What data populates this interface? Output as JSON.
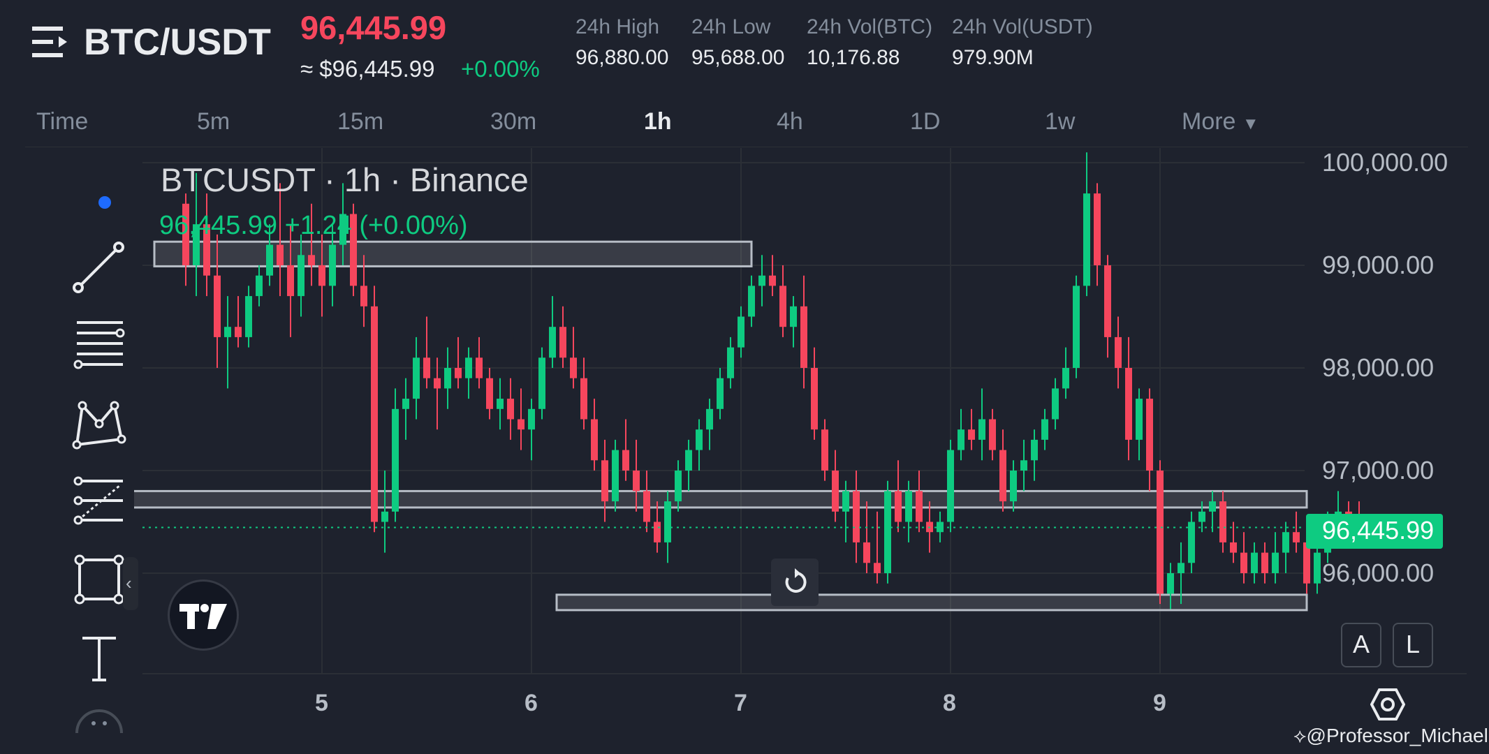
{
  "header": {
    "pair": "BTC/USDT",
    "last_price": "96,445.99",
    "fiat_price": "≈ $96,445.99",
    "change_pct": "+0.00%",
    "stats": [
      {
        "label": "24h High",
        "value": "96,880.00"
      },
      {
        "label": "24h Low",
        "value": "95,688.00"
      },
      {
        "label": "24h Vol(BTC)",
        "value": "10,176.88"
      },
      {
        "label": "24h Vol(USDT)",
        "value": "979.90M"
      }
    ]
  },
  "intervals": [
    "Time",
    "5m",
    "15m",
    "30m",
    "1h",
    "4h",
    "1D",
    "1w",
    "More"
  ],
  "active_interval": "1h",
  "toolbar": {
    "icons": [
      "dot-indicator-icon",
      "trend-line-icon",
      "horizontal-lines-icon",
      "pattern-icon",
      "fib-tool-icon",
      "rectangle-icon",
      "text-icon",
      "more-tools-icon"
    ]
  },
  "chart": {
    "title": "BTCUSDT · 1h · Binance",
    "ohlc": "96,445.99 +1.24 (+0.00%)",
    "price_tag": "96,445.99",
    "scale_auto": "A",
    "scale_log": "L",
    "watermark": "@Professor_Michael",
    "colors": {
      "up": "#0ecb81",
      "down": "#f6465d",
      "background": "#1e222d",
      "grid": "#2b2f36"
    }
  },
  "chart_data": {
    "type": "candlestick",
    "title": "BTCUSDT · 1h · Binance",
    "y_ticks": [
      "100,000.00",
      "99,000.00",
      "98,000.00",
      "97,000.00",
      "96,000.00"
    ],
    "x_ticks": [
      "5",
      "6",
      "7",
      "8",
      "9"
    ],
    "ylim": [
      95200,
      100150
    ],
    "last_price": 96445.99,
    "zones": [
      {
        "x_start": 4.2,
        "x_end": 7.05,
        "y_low": 98990,
        "y_high": 99230
      },
      {
        "x_start": 3.95,
        "x_end": 9.7,
        "y_low": 96640,
        "y_high": 96800
      },
      {
        "x_start": 6.12,
        "x_end": 9.7,
        "y_low": 95640,
        "y_high": 95790
      }
    ],
    "candles": [
      [
        4.35,
        99600,
        99700,
        98800,
        99000
      ],
      [
        4.4,
        99000,
        99900,
        98700,
        99400
      ],
      [
        4.45,
        99400,
        99700,
        98700,
        98900
      ],
      [
        4.5,
        98900,
        99300,
        98000,
        98300
      ],
      [
        4.55,
        98300,
        98700,
        97800,
        98400
      ],
      [
        4.6,
        98400,
        98700,
        98200,
        98300
      ],
      [
        4.65,
        98300,
        98800,
        98200,
        98700
      ],
      [
        4.7,
        98700,
        99000,
        98600,
        98900
      ],
      [
        4.75,
        98900,
        99400,
        98800,
        99200
      ],
      [
        4.8,
        99200,
        99800,
        98700,
        99000
      ],
      [
        4.85,
        99000,
        99400,
        98300,
        98700
      ],
      [
        4.9,
        98700,
        99300,
        98500,
        99100
      ],
      [
        4.95,
        99100,
        99600,
        98800,
        99000
      ],
      [
        5.0,
        99000,
        99300,
        98500,
        98800
      ],
      [
        5.05,
        98800,
        99400,
        98600,
        99200
      ],
      [
        5.1,
        99200,
        99800,
        99000,
        99500
      ],
      [
        5.15,
        99500,
        99600,
        98700,
        98800
      ],
      [
        5.2,
        98800,
        99100,
        98400,
        98600
      ],
      [
        5.25,
        98600,
        98800,
        96400,
        96500
      ],
      [
        5.3,
        96500,
        97000,
        96200,
        96600
      ],
      [
        5.35,
        96600,
        97800,
        96500,
        97600
      ],
      [
        5.4,
        97600,
        97900,
        97300,
        97700
      ],
      [
        5.45,
        97700,
        98300,
        97500,
        98100
      ],
      [
        5.5,
        98100,
        98500,
        97800,
        97900
      ],
      [
        5.55,
        97900,
        98100,
        97400,
        97800
      ],
      [
        5.6,
        97800,
        98200,
        97600,
        98000
      ],
      [
        5.65,
        98000,
        98300,
        97800,
        97900
      ],
      [
        5.7,
        97900,
        98200,
        97700,
        98100
      ],
      [
        5.75,
        98100,
        98300,
        97800,
        97900
      ],
      [
        5.8,
        97900,
        98000,
        97500,
        97600
      ],
      [
        5.85,
        97600,
        97900,
        97400,
        97700
      ],
      [
        5.9,
        97700,
        97900,
        97300,
        97500
      ],
      [
        5.95,
        97500,
        97800,
        97200,
        97400
      ],
      [
        6.0,
        97400,
        97700,
        97100,
        97600
      ],
      [
        6.05,
        97600,
        98200,
        97500,
        98100
      ],
      [
        6.1,
        98100,
        98700,
        98000,
        98400
      ],
      [
        6.15,
        98400,
        98600,
        98000,
        98100
      ],
      [
        6.2,
        98100,
        98400,
        97800,
        97900
      ],
      [
        6.25,
        97900,
        98100,
        97400,
        97500
      ],
      [
        6.3,
        97500,
        97700,
        97000,
        97100
      ],
      [
        6.35,
        97100,
        97300,
        96500,
        96700
      ],
      [
        6.4,
        96700,
        97300,
        96600,
        97200
      ],
      [
        6.45,
        97200,
        97500,
        96900,
        97000
      ],
      [
        6.5,
        97000,
        97300,
        96600,
        96800
      ],
      [
        6.55,
        96800,
        97000,
        96400,
        96500
      ],
      [
        6.6,
        96500,
        96700,
        96200,
        96300
      ],
      [
        6.65,
        96300,
        96800,
        96100,
        96700
      ],
      [
        6.7,
        96700,
        97100,
        96600,
        97000
      ],
      [
        6.75,
        97000,
        97300,
        96800,
        97200
      ],
      [
        6.8,
        97200,
        97500,
        97000,
        97400
      ],
      [
        6.85,
        97400,
        97700,
        97200,
        97600
      ],
      [
        6.9,
        97600,
        98000,
        97500,
        97900
      ],
      [
        6.95,
        97900,
        98300,
        97800,
        98200
      ],
      [
        7.0,
        98200,
        98600,
        98100,
        98500
      ],
      [
        7.05,
        98500,
        98900,
        98400,
        98800
      ],
      [
        7.1,
        98800,
        99100,
        98600,
        98900
      ],
      [
        7.15,
        98900,
        99100,
        98700,
        98800
      ],
      [
        7.2,
        98800,
        99000,
        98300,
        98400
      ],
      [
        7.25,
        98400,
        98700,
        98200,
        98600
      ],
      [
        7.3,
        98600,
        98900,
        97800,
        98000
      ],
      [
        7.35,
        98000,
        98200,
        97300,
        97400
      ],
      [
        7.4,
        97400,
        97500,
        96900,
        97000
      ],
      [
        7.45,
        97000,
        97200,
        96500,
        96600
      ],
      [
        7.5,
        96600,
        96900,
        96300,
        96800
      ],
      [
        7.55,
        96800,
        97000,
        96100,
        96300
      ],
      [
        7.6,
        96300,
        96700,
        96000,
        96100
      ],
      [
        7.65,
        96100,
        96600,
        95900,
        96000
      ],
      [
        7.7,
        96000,
        96900,
        95900,
        96800
      ],
      [
        7.75,
        96800,
        97100,
        96400,
        96500
      ],
      [
        7.8,
        96500,
        96900,
        96300,
        96800
      ],
      [
        7.85,
        96800,
        97000,
        96400,
        96500
      ],
      [
        7.9,
        96500,
        96700,
        96200,
        96400
      ],
      [
        7.95,
        96400,
        96600,
        96300,
        96500
      ],
      [
        8.0,
        96500,
        97300,
        96400,
        97200
      ],
      [
        8.05,
        97200,
        97600,
        97100,
        97400
      ],
      [
        8.1,
        97400,
        97600,
        97200,
        97300
      ],
      [
        8.15,
        97300,
        97800,
        97100,
        97500
      ],
      [
        8.2,
        97500,
        97600,
        97100,
        97200
      ],
      [
        8.25,
        97200,
        97400,
        96600,
        96700
      ],
      [
        8.3,
        96700,
        97100,
        96600,
        97000
      ],
      [
        8.35,
        97000,
        97300,
        96800,
        97100
      ],
      [
        8.4,
        97100,
        97400,
        96900,
        97300
      ],
      [
        8.45,
        97300,
        97600,
        97200,
        97500
      ],
      [
        8.5,
        97500,
        97900,
        97400,
        97800
      ],
      [
        8.55,
        97800,
        98200,
        97700,
        98000
      ],
      [
        8.6,
        98000,
        98900,
        97900,
        98800
      ],
      [
        8.65,
        98800,
        100100,
        98700,
        99700
      ],
      [
        8.7,
        99700,
        99800,
        98800,
        99000
      ],
      [
        8.75,
        99000,
        99100,
        98100,
        98300
      ],
      [
        8.8,
        98300,
        98500,
        97800,
        98000
      ],
      [
        8.85,
        98000,
        98300,
        97100,
        97300
      ],
      [
        8.9,
        97300,
        97800,
        97100,
        97700
      ],
      [
        8.95,
        97700,
        97800,
        96800,
        97000
      ],
      [
        9.0,
        97000,
        97100,
        95700,
        95800
      ],
      [
        9.05,
        95800,
        96100,
        95650,
        96000
      ],
      [
        9.1,
        96000,
        96300,
        95700,
        96100
      ],
      [
        9.15,
        96100,
        96600,
        96000,
        96500
      ],
      [
        9.2,
        96500,
        96700,
        96400,
        96600
      ],
      [
        9.25,
        96600,
        96800,
        96400,
        96700
      ],
      [
        9.3,
        96700,
        96800,
        96200,
        96300
      ],
      [
        9.35,
        96300,
        96500,
        96100,
        96200
      ],
      [
        9.4,
        96200,
        96400,
        95900,
        96000
      ],
      [
        9.45,
        96000,
        96300,
        95900,
        96200
      ],
      [
        9.5,
        96200,
        96300,
        95900,
        96000
      ],
      [
        9.55,
        96000,
        96400,
        95900,
        96200
      ],
      [
        9.6,
        96200,
        96500,
        96000,
        96400
      ],
      [
        9.65,
        96400,
        96600,
        96200,
        96300
      ],
      [
        9.7,
        96300,
        96500,
        95800,
        95900
      ],
      [
        9.75,
        95900,
        96300,
        95800,
        96200
      ],
      [
        9.8,
        96200,
        96600,
        96100,
        96500
      ],
      [
        9.85,
        96500,
        96800,
        96400,
        96600
      ],
      [
        9.9,
        96600,
        96700,
        96400,
        96500
      ],
      [
        9.95,
        96500,
        96700,
        96400,
        96450
      ],
      [
        10.0,
        96450,
        96500,
        96430,
        96446
      ]
    ]
  }
}
